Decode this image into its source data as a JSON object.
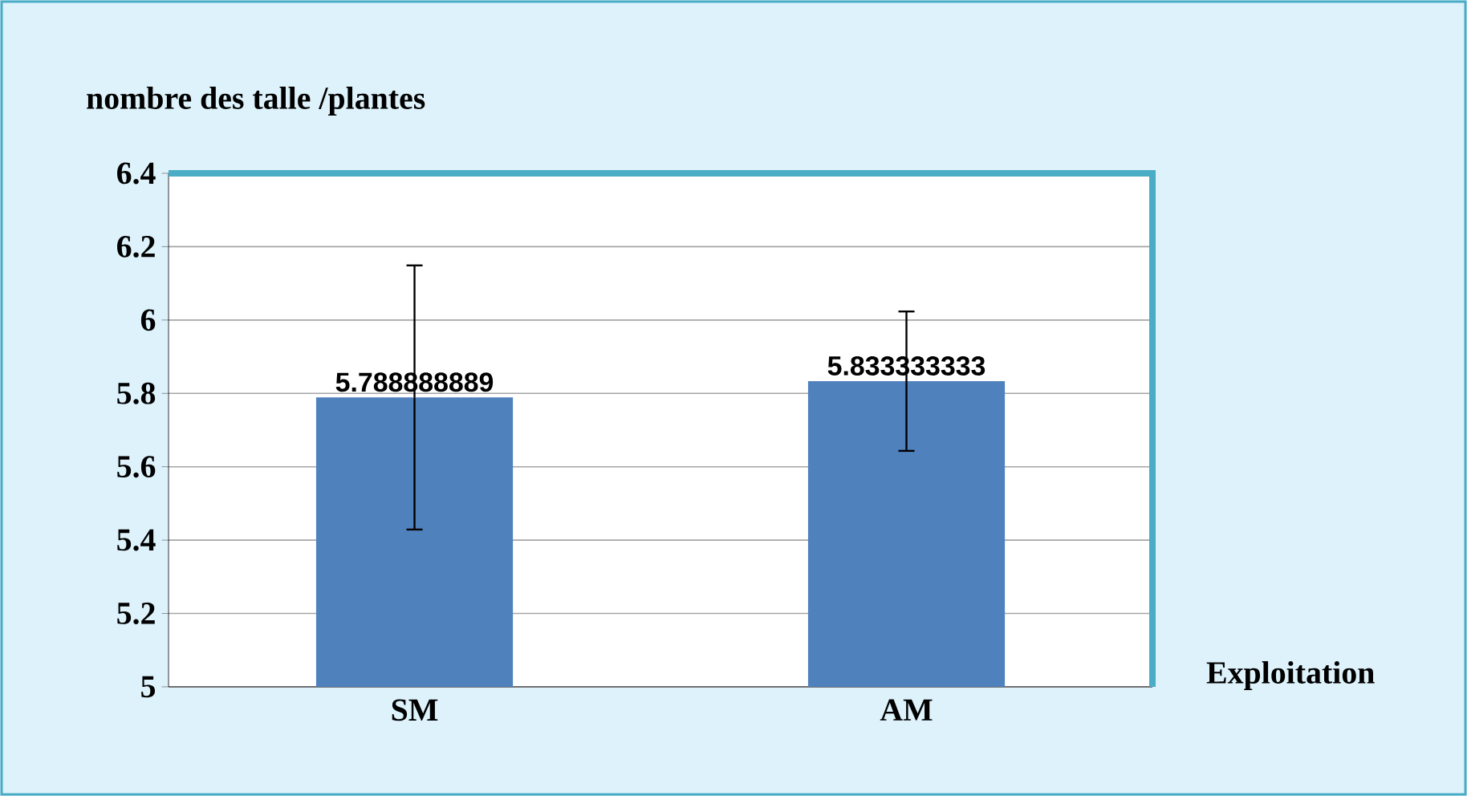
{
  "chart_data": {
    "type": "bar",
    "ylabel": "nombre des talle /plantes",
    "xlabel": "Exploitation",
    "categories": [
      "SM",
      "AM"
    ],
    "values": [
      5.788888889,
      5.833333333
    ],
    "value_labels": [
      "5.788888889",
      "5.833333333"
    ],
    "errors": [
      0.36,
      0.19
    ],
    "color": "#4f81bd",
    "ylim": [
      5,
      6.4
    ],
    "yticks": [
      5,
      5.2,
      5.4,
      5.6,
      5.8,
      6,
      6.2,
      6.4
    ],
    "grid": "y"
  }
}
